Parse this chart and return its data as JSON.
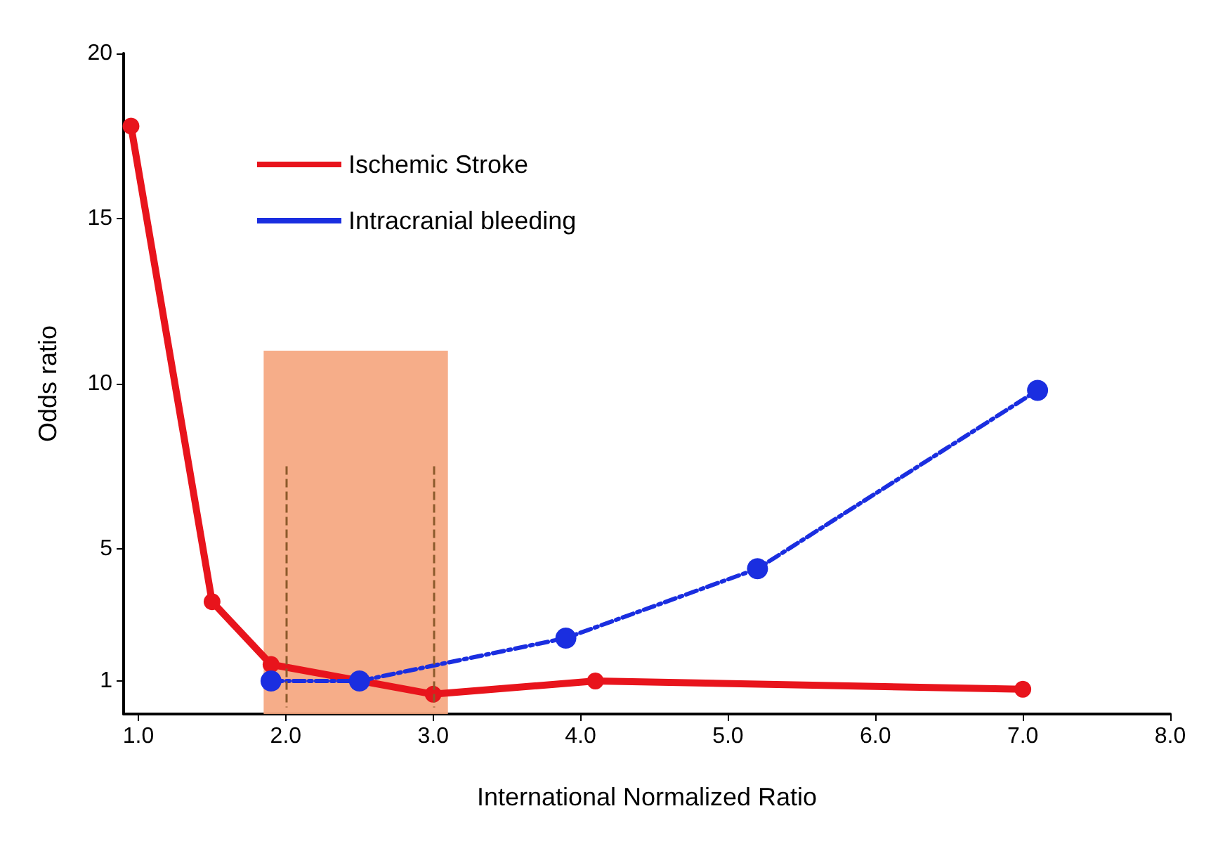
{
  "chart_data": {
    "type": "line",
    "xlabel": "International Normalized Ratio",
    "ylabel": "Odds ratio",
    "xlim": [
      0.9,
      8.0
    ],
    "xticks": [
      {
        "value": 1,
        "label": "1.0"
      },
      {
        "value": 2,
        "label": "2.0"
      },
      {
        "value": 3,
        "label": "3.0"
      },
      {
        "value": 4,
        "label": "4.0"
      },
      {
        "value": 5,
        "label": "5.0"
      },
      {
        "value": 6,
        "label": "6.0"
      },
      {
        "value": 7,
        "label": "7.0"
      },
      {
        "value": 8,
        "label": "8.0"
      }
    ],
    "ylim": [
      0,
      20
    ],
    "yticks": [
      1,
      5,
      10,
      15,
      20
    ],
    "series": [
      {
        "name": "Ischemic Stroke",
        "color": "#e8141c",
        "line_style": "solid",
        "x": [
          0.95,
          1.5,
          1.9,
          3.0,
          4.1,
          7.0
        ],
        "values": [
          17.8,
          3.4,
          1.5,
          0.6,
          1.0,
          0.75
        ]
      },
      {
        "name": "Intracranial bleeding",
        "color": "#1a2ee0",
        "line_style": "dashed",
        "x": [
          1.9,
          2.5,
          3.9,
          5.2,
          7.1
        ],
        "values": [
          1.0,
          1.0,
          2.3,
          4.4,
          9.8
        ]
      }
    ],
    "bands": [
      {
        "axis": "x",
        "from": 1.85,
        "to": 3.1,
        "color": "#f5a47c"
      }
    ],
    "ref_lines": [
      {
        "axis": "x",
        "value": 2.0,
        "color": "#8b5a2b",
        "line_style": "dashed"
      },
      {
        "axis": "x",
        "value": 3.0,
        "color": "#8b5a2b",
        "line_style": "dashed"
      }
    ],
    "marker": "circle",
    "grid": false,
    "legend": "top"
  }
}
